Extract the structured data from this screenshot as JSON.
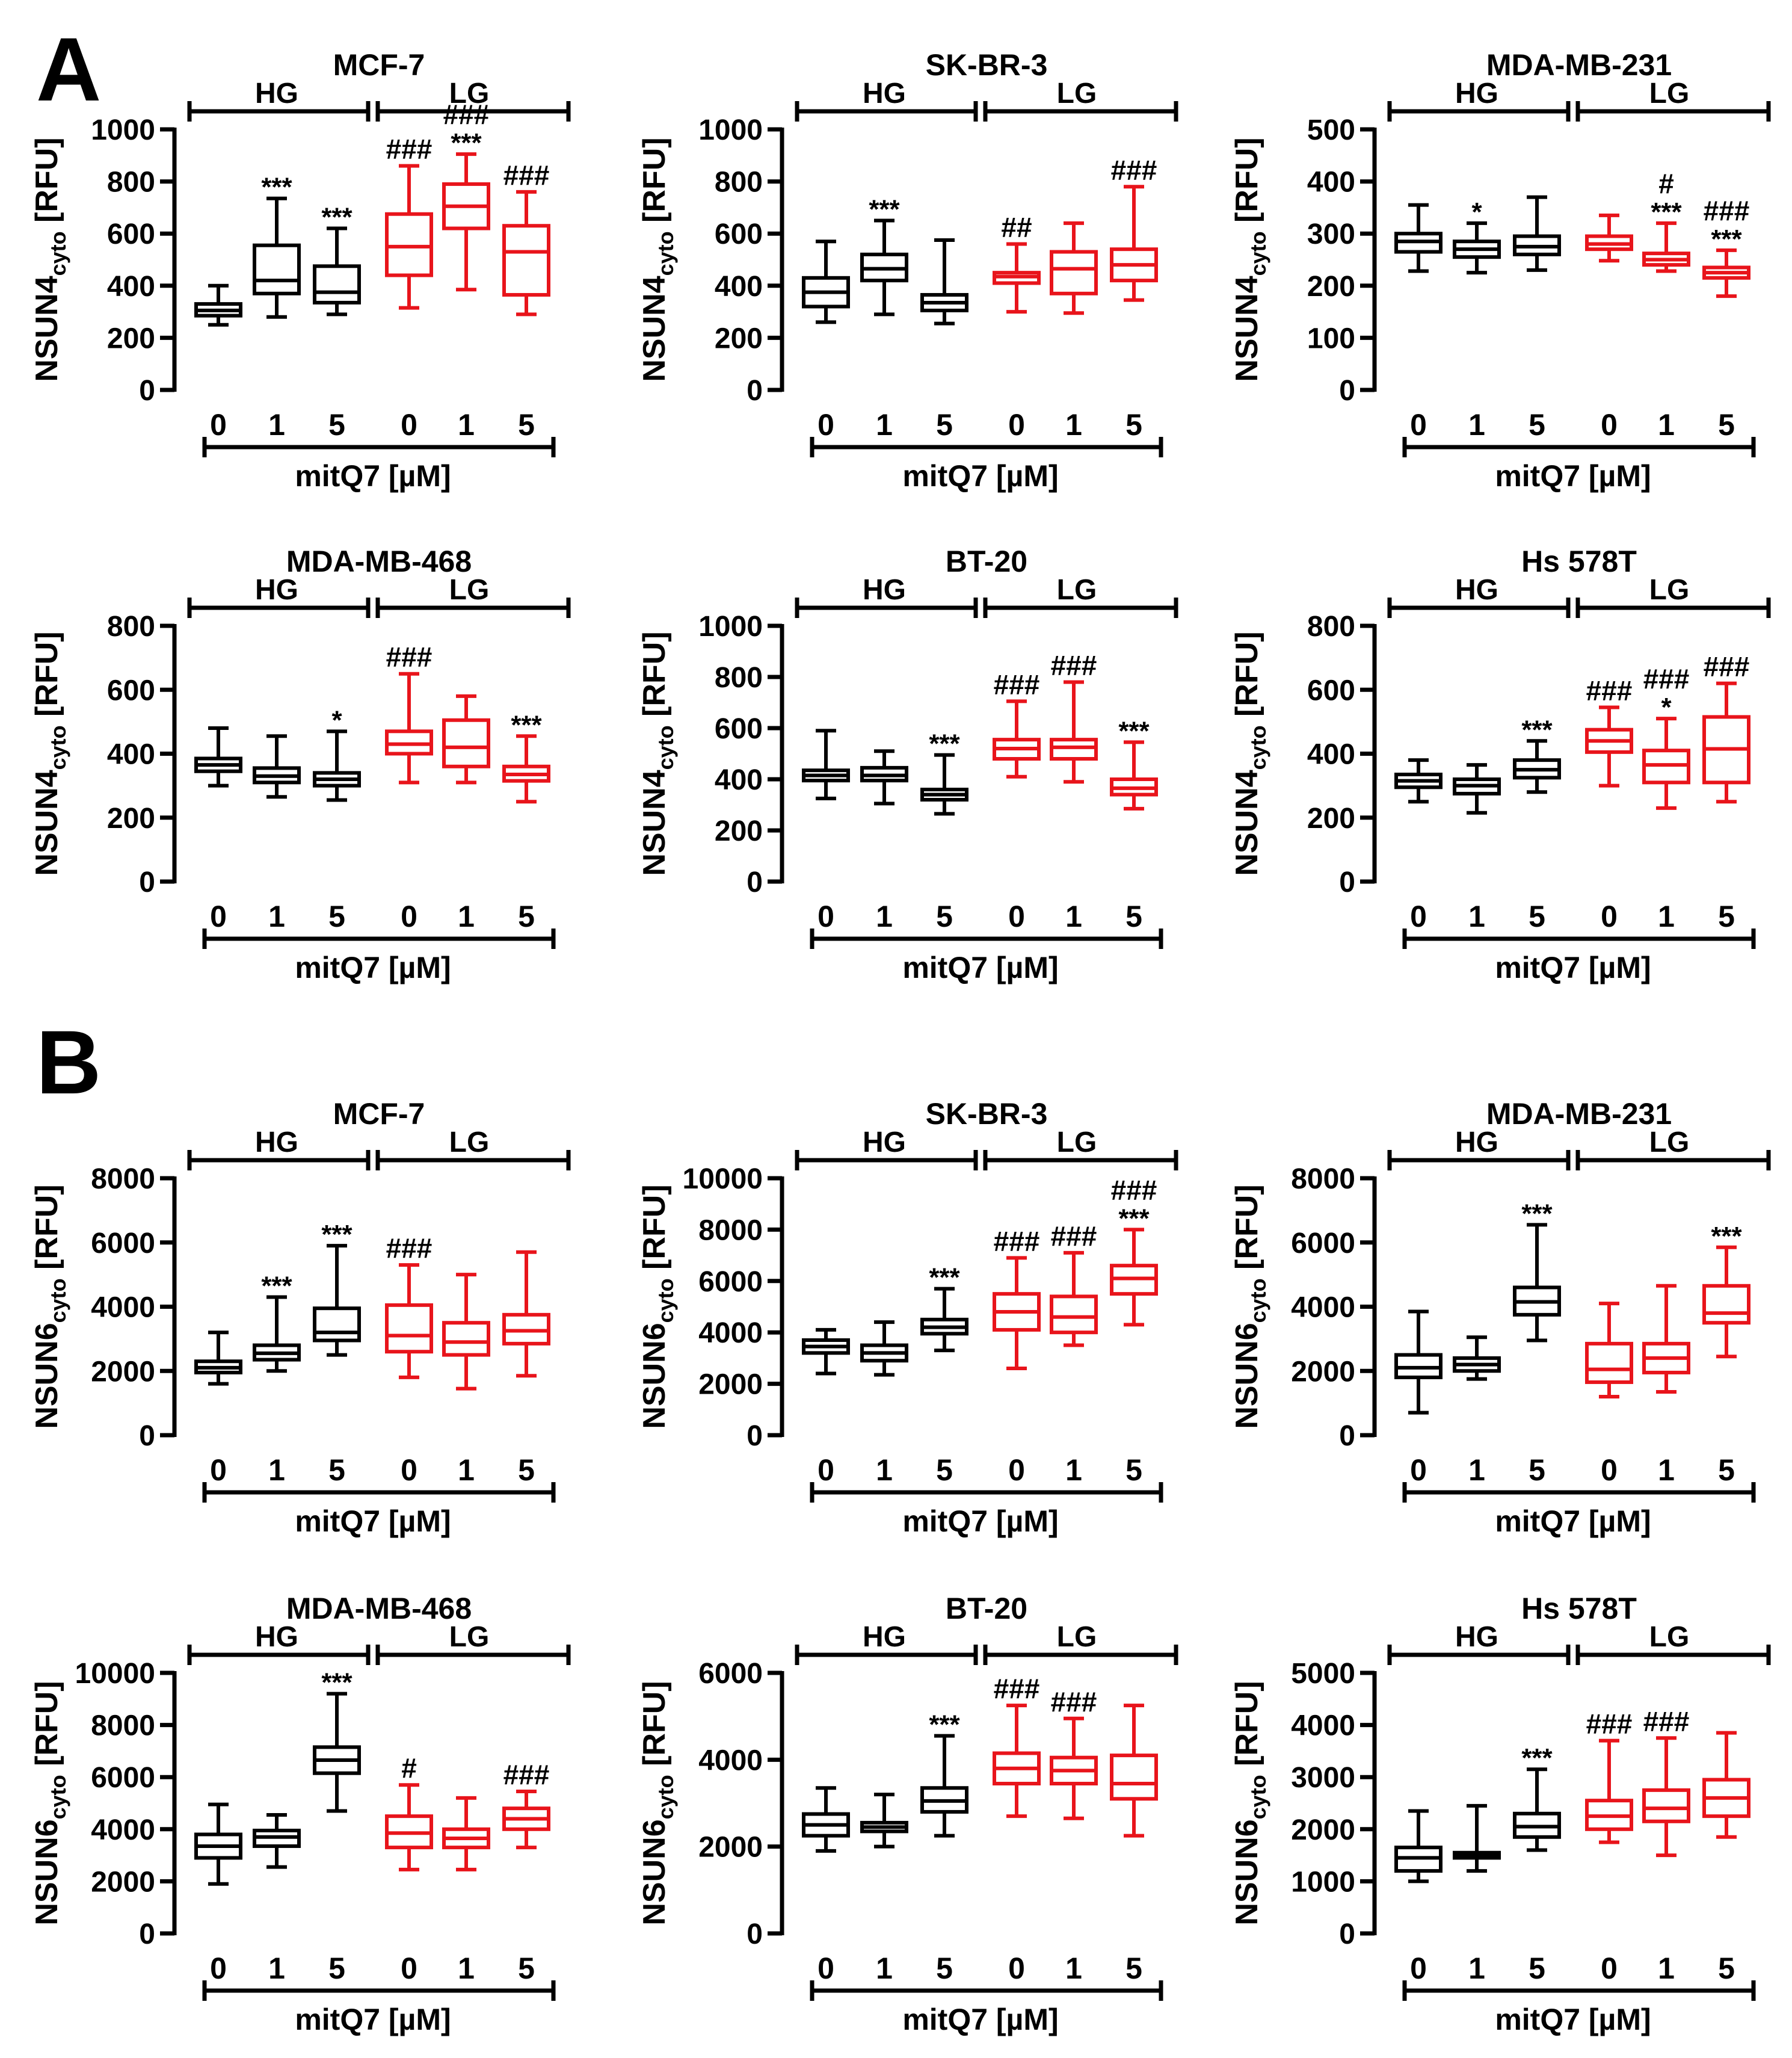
{
  "panels": [
    {
      "letter": "A"
    },
    {
      "letter": "B"
    }
  ],
  "shared": {
    "group_high": "HG",
    "group_low": "LG",
    "x_title": "mitQ7 [µM]",
    "colors": {
      "HG": "#000000",
      "LG": "#e8141b"
    }
  },
  "chart_data": [
    {
      "type": "box",
      "panel": "A",
      "title": "MCF-7",
      "ylabel": "NSUN4cyto [RFU]",
      "ylim": [
        0,
        1000
      ],
      "yticks": [
        0,
        200,
        400,
        600,
        800,
        1000
      ],
      "categories": [
        "0",
        "1",
        "5",
        "0",
        "1",
        "5"
      ],
      "groups": [
        "HG",
        "HG",
        "HG",
        "LG",
        "LG",
        "LG"
      ],
      "boxes": [
        {
          "min": 250,
          "q1": 285,
          "median": 305,
          "q3": 330,
          "max": 400,
          "annot": []
        },
        {
          "min": 280,
          "q1": 370,
          "median": 420,
          "q3": 555,
          "max": 735,
          "annot": [
            "***"
          ]
        },
        {
          "min": 290,
          "q1": 335,
          "median": 375,
          "q3": 475,
          "max": 620,
          "annot": [
            "***"
          ]
        },
        {
          "min": 315,
          "q1": 440,
          "median": 550,
          "q3": 675,
          "max": 860,
          "annot": [
            "###"
          ]
        },
        {
          "min": 385,
          "q1": 620,
          "median": 705,
          "q3": 790,
          "max": 905,
          "annot": [
            "###",
            "***"
          ]
        },
        {
          "min": 290,
          "q1": 365,
          "median": 530,
          "q3": 630,
          "max": 760,
          "annot": [
            "###"
          ]
        }
      ]
    },
    {
      "type": "box",
      "panel": "A",
      "title": "SK-BR-3",
      "ylabel": "NSUN4cyto [RFU]",
      "ylim": [
        0,
        1000
      ],
      "yticks": [
        0,
        200,
        400,
        600,
        800,
        1000
      ],
      "categories": [
        "0",
        "1",
        "5",
        "0",
        "1",
        "5"
      ],
      "groups": [
        "HG",
        "HG",
        "HG",
        "LG",
        "LG",
        "LG"
      ],
      "boxes": [
        {
          "min": 260,
          "q1": 320,
          "median": 375,
          "q3": 430,
          "max": 570,
          "annot": []
        },
        {
          "min": 290,
          "q1": 420,
          "median": 465,
          "q3": 520,
          "max": 650,
          "annot": [
            "***"
          ]
        },
        {
          "min": 255,
          "q1": 305,
          "median": 335,
          "q3": 365,
          "max": 575,
          "annot": []
        },
        {
          "min": 300,
          "q1": 410,
          "median": 435,
          "q3": 450,
          "max": 560,
          "annot": [
            "##"
          ]
        },
        {
          "min": 295,
          "q1": 370,
          "median": 465,
          "q3": 530,
          "max": 640,
          "annot": []
        },
        {
          "min": 345,
          "q1": 420,
          "median": 480,
          "q3": 540,
          "max": 780,
          "annot": [
            "###"
          ]
        }
      ]
    },
    {
      "type": "box",
      "panel": "A",
      "title": "MDA-MB-231",
      "ylabel": "NSUN4cyto [RFU]",
      "ylim": [
        0,
        500
      ],
      "yticks": [
        0,
        100,
        200,
        300,
        400,
        500
      ],
      "categories": [
        "0",
        "1",
        "5",
        "0",
        "1",
        "5"
      ],
      "groups": [
        "HG",
        "HG",
        "HG",
        "LG",
        "LG",
        "LG"
      ],
      "boxes": [
        {
          "min": 228,
          "q1": 265,
          "median": 285,
          "q3": 300,
          "max": 355,
          "annot": []
        },
        {
          "min": 225,
          "q1": 255,
          "median": 270,
          "q3": 285,
          "max": 320,
          "annot": [
            "*"
          ]
        },
        {
          "min": 230,
          "q1": 260,
          "median": 275,
          "q3": 295,
          "max": 370,
          "annot": []
        },
        {
          "min": 248,
          "q1": 270,
          "median": 280,
          "q3": 295,
          "max": 335,
          "annot": []
        },
        {
          "min": 228,
          "q1": 240,
          "median": 250,
          "q3": 262,
          "max": 320,
          "annot": [
            "#",
            "***"
          ]
        },
        {
          "min": 180,
          "q1": 215,
          "median": 225,
          "q3": 235,
          "max": 268,
          "annot": [
            "###",
            "***"
          ]
        }
      ]
    },
    {
      "type": "box",
      "panel": "A",
      "title": "MDA-MB-468",
      "ylabel": "NSUN4cyto [RFU]",
      "ylim": [
        0,
        800
      ],
      "yticks": [
        0,
        200,
        400,
        600,
        800
      ],
      "categories": [
        "0",
        "1",
        "5",
        "0",
        "1",
        "5"
      ],
      "groups": [
        "HG",
        "HG",
        "HG",
        "LG",
        "LG",
        "LG"
      ],
      "boxes": [
        {
          "min": 300,
          "q1": 345,
          "median": 365,
          "q3": 385,
          "max": 480,
          "annot": []
        },
        {
          "min": 265,
          "q1": 310,
          "median": 330,
          "q3": 355,
          "max": 455,
          "annot": []
        },
        {
          "min": 255,
          "q1": 300,
          "median": 320,
          "q3": 340,
          "max": 470,
          "annot": [
            "*"
          ]
        },
        {
          "min": 310,
          "q1": 400,
          "median": 430,
          "q3": 470,
          "max": 650,
          "annot": [
            "###"
          ]
        },
        {
          "min": 310,
          "q1": 360,
          "median": 420,
          "q3": 505,
          "max": 580,
          "annot": []
        },
        {
          "min": 250,
          "q1": 315,
          "median": 335,
          "q3": 360,
          "max": 455,
          "annot": [
            "***"
          ]
        }
      ]
    },
    {
      "type": "box",
      "panel": "A",
      "title": "BT-20",
      "ylabel": "NSUN4cyto [RFU]",
      "ylim": [
        0,
        1000
      ],
      "yticks": [
        0,
        200,
        400,
        600,
        800,
        1000
      ],
      "categories": [
        "0",
        "1",
        "5",
        "0",
        "1",
        "5"
      ],
      "groups": [
        "HG",
        "HG",
        "HG",
        "LG",
        "LG",
        "LG"
      ],
      "boxes": [
        {
          "min": 325,
          "q1": 395,
          "median": 415,
          "q3": 435,
          "max": 590,
          "annot": []
        },
        {
          "min": 305,
          "q1": 395,
          "median": 415,
          "q3": 445,
          "max": 510,
          "annot": []
        },
        {
          "min": 265,
          "q1": 320,
          "median": 340,
          "q3": 360,
          "max": 495,
          "annot": [
            "***"
          ]
        },
        {
          "min": 410,
          "q1": 480,
          "median": 520,
          "q3": 555,
          "max": 705,
          "annot": [
            "###"
          ]
        },
        {
          "min": 390,
          "q1": 480,
          "median": 525,
          "q3": 555,
          "max": 780,
          "annot": [
            "###"
          ]
        },
        {
          "min": 285,
          "q1": 340,
          "median": 365,
          "q3": 400,
          "max": 545,
          "annot": [
            "***"
          ]
        }
      ]
    },
    {
      "type": "box",
      "panel": "A",
      "title": "Hs 578T",
      "ylabel": "NSUN4cyto [RFU]",
      "ylim": [
        0,
        800
      ],
      "yticks": [
        0,
        200,
        400,
        600,
        800
      ],
      "categories": [
        "0",
        "1",
        "5",
        "0",
        "1",
        "5"
      ],
      "groups": [
        "HG",
        "HG",
        "HG",
        "LG",
        "LG",
        "LG"
      ],
      "boxes": [
        {
          "min": 250,
          "q1": 295,
          "median": 315,
          "q3": 335,
          "max": 380,
          "annot": []
        },
        {
          "min": 215,
          "q1": 275,
          "median": 300,
          "q3": 320,
          "max": 365,
          "annot": []
        },
        {
          "min": 280,
          "q1": 325,
          "median": 350,
          "q3": 380,
          "max": 440,
          "annot": [
            "***"
          ]
        },
        {
          "min": 300,
          "q1": 405,
          "median": 440,
          "q3": 475,
          "max": 545,
          "annot": [
            "###"
          ]
        },
        {
          "min": 230,
          "q1": 310,
          "median": 365,
          "q3": 410,
          "max": 510,
          "annot": [
            "###",
            "*"
          ]
        },
        {
          "min": 250,
          "q1": 310,
          "median": 415,
          "q3": 515,
          "max": 620,
          "annot": [
            "###"
          ]
        }
      ]
    },
    {
      "type": "box",
      "panel": "B",
      "title": "MCF-7",
      "ylabel": "NSUN6cyto [RFU]",
      "ylim": [
        0,
        8000
      ],
      "yticks": [
        0,
        2000,
        4000,
        6000,
        8000
      ],
      "categories": [
        "0",
        "1",
        "5",
        "0",
        "1",
        "5"
      ],
      "groups": [
        "HG",
        "HG",
        "HG",
        "LG",
        "LG",
        "LG"
      ],
      "boxes": [
        {
          "min": 1600,
          "q1": 1950,
          "median": 2100,
          "q3": 2300,
          "max": 3200,
          "annot": []
        },
        {
          "min": 2000,
          "q1": 2350,
          "median": 2550,
          "q3": 2800,
          "max": 4300,
          "annot": [
            "***"
          ]
        },
        {
          "min": 2500,
          "q1": 2950,
          "median": 3200,
          "q3": 3950,
          "max": 5900,
          "annot": [
            "***"
          ]
        },
        {
          "min": 1800,
          "q1": 2600,
          "median": 3100,
          "q3": 4050,
          "max": 5300,
          "annot": [
            "###"
          ]
        },
        {
          "min": 1450,
          "q1": 2500,
          "median": 2900,
          "q3": 3500,
          "max": 5000,
          "annot": []
        },
        {
          "min": 1850,
          "q1": 2850,
          "median": 3250,
          "q3": 3750,
          "max": 5700,
          "annot": []
        }
      ]
    },
    {
      "type": "box",
      "panel": "B",
      "title": "SK-BR-3",
      "ylabel": "NSUN6cyto [RFU]",
      "ylim": [
        0,
        10000
      ],
      "yticks": [
        0,
        2000,
        4000,
        6000,
        8000,
        10000
      ],
      "categories": [
        "0",
        "1",
        "5",
        "0",
        "1",
        "5"
      ],
      "groups": [
        "HG",
        "HG",
        "HG",
        "LG",
        "LG",
        "LG"
      ],
      "boxes": [
        {
          "min": 2400,
          "q1": 3200,
          "median": 3450,
          "q3": 3700,
          "max": 4100,
          "annot": []
        },
        {
          "min": 2350,
          "q1": 2900,
          "median": 3200,
          "q3": 3500,
          "max": 4400,
          "annot": []
        },
        {
          "min": 3300,
          "q1": 3950,
          "median": 4200,
          "q3": 4500,
          "max": 5700,
          "annot": [
            "***"
          ]
        },
        {
          "min": 2600,
          "q1": 4100,
          "median": 4800,
          "q3": 5500,
          "max": 6900,
          "annot": [
            "###"
          ]
        },
        {
          "min": 3500,
          "q1": 4000,
          "median": 4600,
          "q3": 5400,
          "max": 7100,
          "annot": [
            "###"
          ]
        },
        {
          "min": 4300,
          "q1": 5500,
          "median": 6100,
          "q3": 6600,
          "max": 8000,
          "annot": [
            "###",
            "***"
          ]
        }
      ]
    },
    {
      "type": "box",
      "panel": "B",
      "title": "MDA-MB-231",
      "ylabel": "NSUN6cyto [RFU]",
      "ylim": [
        0,
        8000
      ],
      "yticks": [
        0,
        2000,
        4000,
        6000,
        8000
      ],
      "categories": [
        "0",
        "1",
        "5",
        "0",
        "1",
        "5"
      ],
      "groups": [
        "HG",
        "HG",
        "HG",
        "LG",
        "LG",
        "LG"
      ],
      "boxes": [
        {
          "min": 700,
          "q1": 1800,
          "median": 2100,
          "q3": 2500,
          "max": 3850,
          "annot": []
        },
        {
          "min": 1750,
          "q1": 2000,
          "median": 2200,
          "q3": 2400,
          "max": 3050,
          "annot": []
        },
        {
          "min": 2950,
          "q1": 3750,
          "median": 4150,
          "q3": 4600,
          "max": 6550,
          "annot": [
            "***"
          ]
        },
        {
          "min": 1200,
          "q1": 1650,
          "median": 2050,
          "q3": 2850,
          "max": 4100,
          "annot": []
        },
        {
          "min": 1350,
          "q1": 1950,
          "median": 2400,
          "q3": 2850,
          "max": 4650,
          "annot": []
        },
        {
          "min": 2450,
          "q1": 3500,
          "median": 3800,
          "q3": 4650,
          "max": 5850,
          "annot": [
            "***"
          ]
        }
      ]
    },
    {
      "type": "box",
      "panel": "B",
      "title": "MDA-MB-468",
      "ylabel": "NSUN6cyto [RFU]",
      "ylim": [
        0,
        10000
      ],
      "yticks": [
        0,
        2000,
        4000,
        6000,
        8000,
        10000
      ],
      "categories": [
        "0",
        "1",
        "5",
        "0",
        "1",
        "5"
      ],
      "groups": [
        "HG",
        "HG",
        "HG",
        "LG",
        "LG",
        "LG"
      ],
      "boxes": [
        {
          "min": 1900,
          "q1": 2900,
          "median": 3350,
          "q3": 3800,
          "max": 4950,
          "annot": []
        },
        {
          "min": 2550,
          "q1": 3350,
          "median": 3700,
          "q3": 3950,
          "max": 4550,
          "annot": []
        },
        {
          "min": 4700,
          "q1": 6150,
          "median": 6650,
          "q3": 7150,
          "max": 9200,
          "annot": [
            "***"
          ]
        },
        {
          "min": 2450,
          "q1": 3300,
          "median": 3850,
          "q3": 4500,
          "max": 5700,
          "annot": [
            "#"
          ]
        },
        {
          "min": 2450,
          "q1": 3300,
          "median": 3650,
          "q3": 4000,
          "max": 5200,
          "annot": []
        },
        {
          "min": 3300,
          "q1": 4000,
          "median": 4400,
          "q3": 4800,
          "max": 5450,
          "annot": [
            "###"
          ]
        }
      ]
    },
    {
      "type": "box",
      "panel": "B",
      "title": "BT-20",
      "ylabel": "NSUN6cyto [RFU]",
      "ylim": [
        0,
        6000
      ],
      "yticks": [
        0,
        2000,
        4000,
        6000
      ],
      "categories": [
        "0",
        "1",
        "5",
        "0",
        "1",
        "5"
      ],
      "groups": [
        "HG",
        "HG",
        "HG",
        "LG",
        "LG",
        "LG"
      ],
      "boxes": [
        {
          "min": 1900,
          "q1": 2250,
          "median": 2500,
          "q3": 2750,
          "max": 3350,
          "annot": []
        },
        {
          "min": 2000,
          "q1": 2350,
          "median": 2450,
          "q3": 2550,
          "max": 3200,
          "annot": []
        },
        {
          "min": 2250,
          "q1": 2800,
          "median": 3050,
          "q3": 3350,
          "max": 4550,
          "annot": [
            "***"
          ]
        },
        {
          "min": 2700,
          "q1": 3450,
          "median": 3800,
          "q3": 4150,
          "max": 5250,
          "annot": [
            "###"
          ]
        },
        {
          "min": 2650,
          "q1": 3450,
          "median": 3750,
          "q3": 4050,
          "max": 4950,
          "annot": [
            "###"
          ]
        },
        {
          "min": 2250,
          "q1": 3100,
          "median": 3450,
          "q3": 4100,
          "max": 5250,
          "annot": []
        }
      ]
    },
    {
      "type": "box",
      "panel": "B",
      "title": "Hs 578T",
      "ylabel": "NSUN6cyto [RFU]",
      "ylim": [
        0,
        5000
      ],
      "yticks": [
        0,
        1000,
        2000,
        3000,
        4000,
        5000
      ],
      "categories": [
        "0",
        "1",
        "5",
        "0",
        "1",
        "5"
      ],
      "groups": [
        "HG",
        "HG",
        "HG",
        "LG",
        "LG",
        "LG"
      ],
      "boxes": [
        {
          "min": 1000,
          "q1": 1200,
          "median": 1450,
          "q3": 1650,
          "max": 2350,
          "annot": []
        },
        {
          "min": 1200,
          "q1": 1450,
          "median": 1500,
          "q3": 1550,
          "max": 2450,
          "annot": []
        },
        {
          "min": 1600,
          "q1": 1850,
          "median": 2050,
          "q3": 2300,
          "max": 3150,
          "annot": [
            "***"
          ]
        },
        {
          "min": 1750,
          "q1": 2000,
          "median": 2250,
          "q3": 2550,
          "max": 3700,
          "annot": [
            "###"
          ]
        },
        {
          "min": 1500,
          "q1": 2150,
          "median": 2400,
          "q3": 2750,
          "max": 3750,
          "annot": [
            "###"
          ]
        },
        {
          "min": 1850,
          "q1": 2250,
          "median": 2600,
          "q3": 2950,
          "max": 3850,
          "annot": []
        }
      ]
    }
  ]
}
